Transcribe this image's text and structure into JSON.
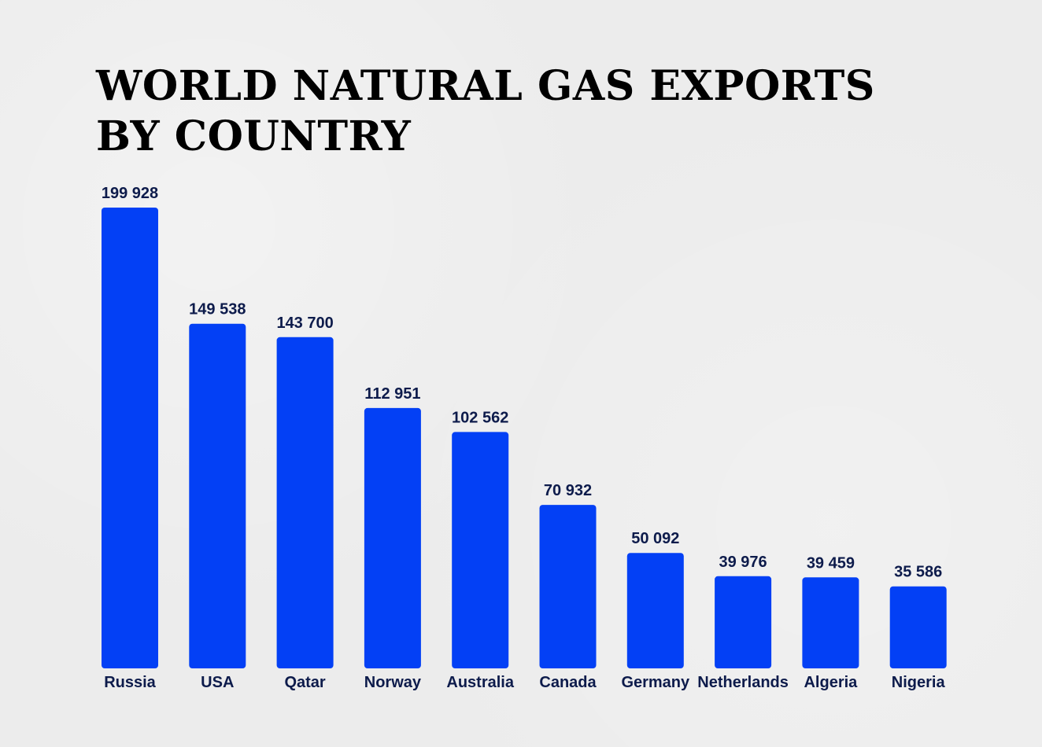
{
  "chart_data": {
    "type": "bar",
    "title_line1": "WORLD NATURAL GAS EXPORTS",
    "title_line2": "BY COUNTRY",
    "categories": [
      "Russia",
      "USA",
      "Qatar",
      "Norway",
      "Australia",
      "Canada",
      "Germany",
      "Netherlands",
      "Algeria",
      "Nigeria"
    ],
    "values": [
      199928,
      149538,
      143700,
      112951,
      102562,
      70932,
      50092,
      39976,
      39459,
      35586
    ],
    "value_labels": [
      "199 928",
      "149 538",
      "143 700",
      "112 951",
      "102 562",
      "70 932",
      "50 092",
      "39 976",
      "39 459",
      "35 586"
    ],
    "xlabel": "",
    "ylabel": "",
    "ylim": [
      0,
      199928
    ],
    "grid": false,
    "legend": "none",
    "colors": {
      "bar": "#0340f5",
      "label": "#0d1b4b",
      "title": "#000000"
    }
  }
}
